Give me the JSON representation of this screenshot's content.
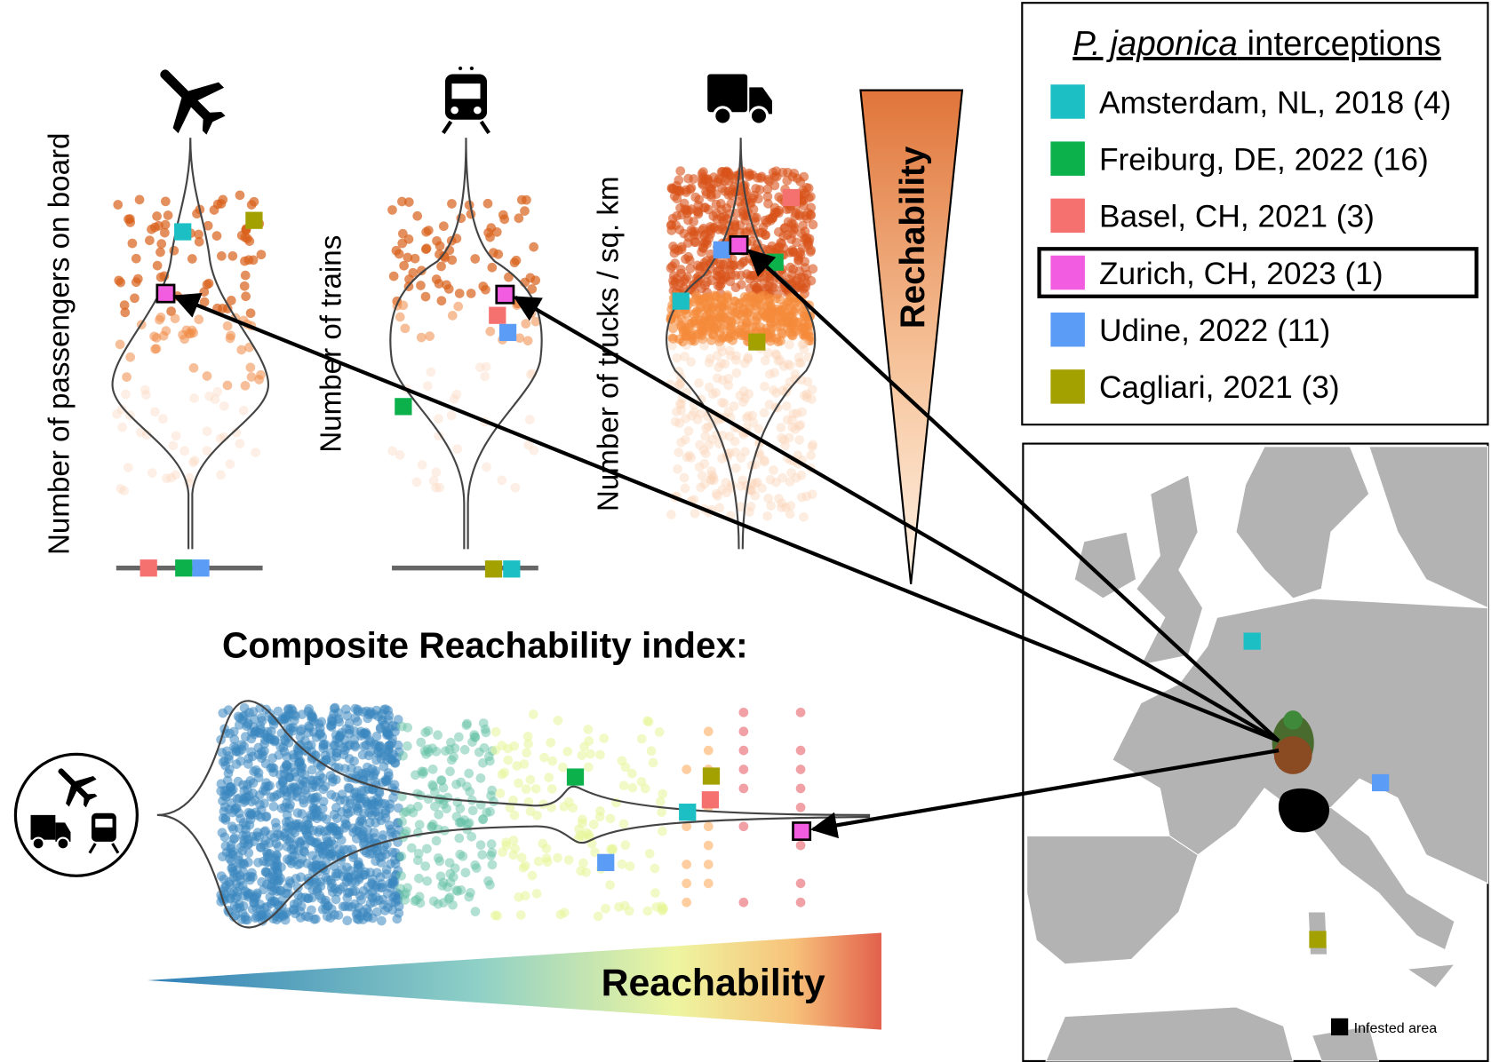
{
  "panels": {
    "air": {
      "y_label": "Number of passengers on board"
    },
    "train": {
      "y_label": "Number of trains"
    },
    "truck": {
      "y_label": "Number of trucks / sq. km"
    }
  },
  "vertical_gradient_label": "Rechability",
  "composite": {
    "title": "Composite Reachability index:",
    "gradient_label": "Reachability"
  },
  "legend": {
    "title_species": "P. japonica",
    "title_rest": "interceptions",
    "entries": [
      {
        "label": "Amsterdam, NL, 2018 (4)",
        "color": "#1bbfc4"
      },
      {
        "label": "Freiburg, DE, 2022 (16)",
        "color": "#0db14b"
      },
      {
        "label": "Basel, CH, 2021 (3)",
        "color": "#f4716f"
      },
      {
        "label": "Zurich, CH, 2023 (1)",
        "color": "#f25ce0"
      },
      {
        "label": "Udine, 2022 (11)",
        "color": "#5b9cf6"
      },
      {
        "label": "Cagliari, 2021 (3)",
        "color": "#a3a100"
      }
    ]
  },
  "map": {
    "legend": "Infested area"
  }
}
